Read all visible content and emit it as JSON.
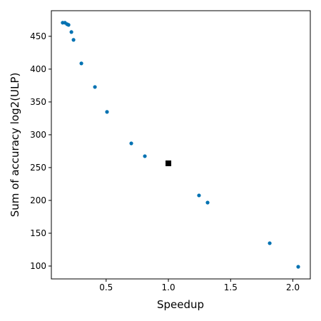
{
  "chart_data": {
    "type": "scatter",
    "x_label": "Speedup",
    "y_label": "Sum of accuracy log2(ULP)",
    "xlim": [
      0.06,
      2.14
    ],
    "ylim": [
      80.4,
      489
    ],
    "xticks": [
      {
        "value": 0.5,
        "label": "0.5"
      },
      {
        "value": 1.0,
        "label": "1.0"
      },
      {
        "value": 1.5,
        "label": "1.5"
      },
      {
        "value": 2.0,
        "label": "2.0"
      }
    ],
    "yticks": [
      100,
      150,
      200,
      250,
      300,
      350,
      400,
      450
    ],
    "series": [
      {
        "color": "#0072b2",
        "marker": "circle",
        "x": [
          0.151,
          0.169,
          0.186,
          0.198,
          0.221,
          0.238,
          0.301,
          0.41,
          0.507,
          0.702,
          0.811,
          1.246,
          1.315,
          1.814,
          2.043
        ],
        "values": [
          470.7,
          470.7,
          468.5,
          467.4,
          456.5,
          444.6,
          408.7,
          372.8,
          334.8,
          286.9,
          267.4,
          207.6,
          196.7,
          134.8,
          98.9
        ]
      },
      {
        "color": "#000000",
        "marker": "square",
        "x": [
          1.0
        ],
        "values": [
          256.5
        ]
      }
    ]
  }
}
